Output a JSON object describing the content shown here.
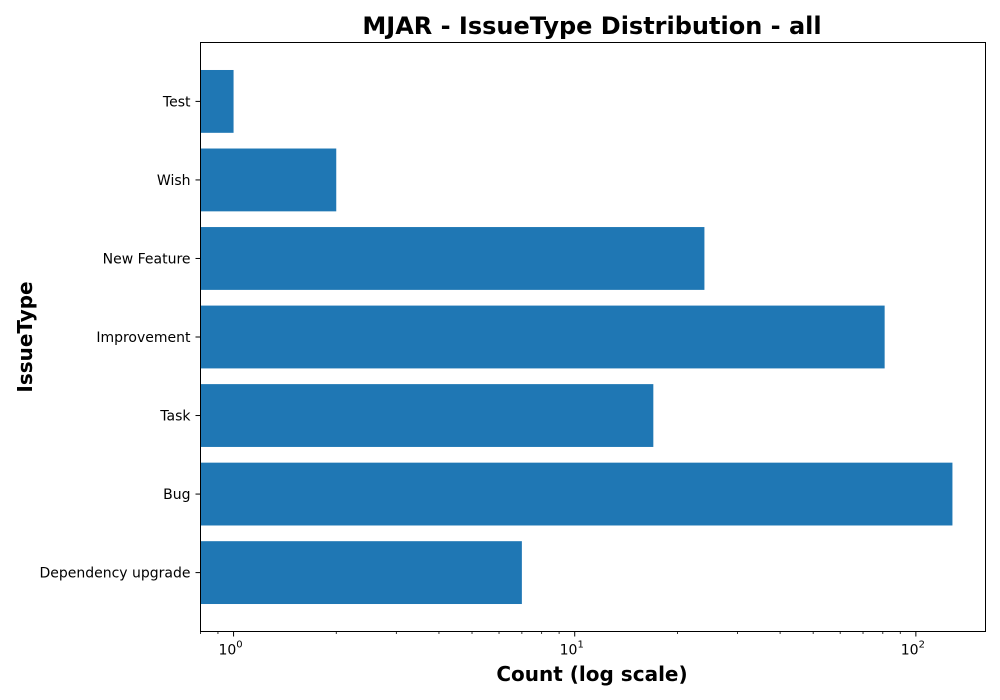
{
  "chart_data": {
    "type": "bar",
    "orientation": "horizontal",
    "title": "MJAR - IssueType Distribution - all",
    "xlabel": "Count (log scale)",
    "ylabel": "IssueType",
    "x_scale": "log",
    "xlim": [
      0.8,
      160
    ],
    "x_tick_values": [
      1,
      10,
      100
    ],
    "x_tick_labels": [
      {
        "base": "10",
        "exp": "0"
      },
      {
        "base": "10",
        "exp": "1"
      },
      {
        "base": "10",
        "exp": "2"
      }
    ],
    "categories": [
      "Test",
      "Wish",
      "New Feature",
      "Improvement",
      "Task",
      "Bug",
      "Dependency upgrade"
    ],
    "values": [
      1,
      2,
      24,
      81,
      17,
      128,
      7
    ],
    "bar_color": "#1f77b4",
    "grid": false,
    "legend": "none"
  }
}
